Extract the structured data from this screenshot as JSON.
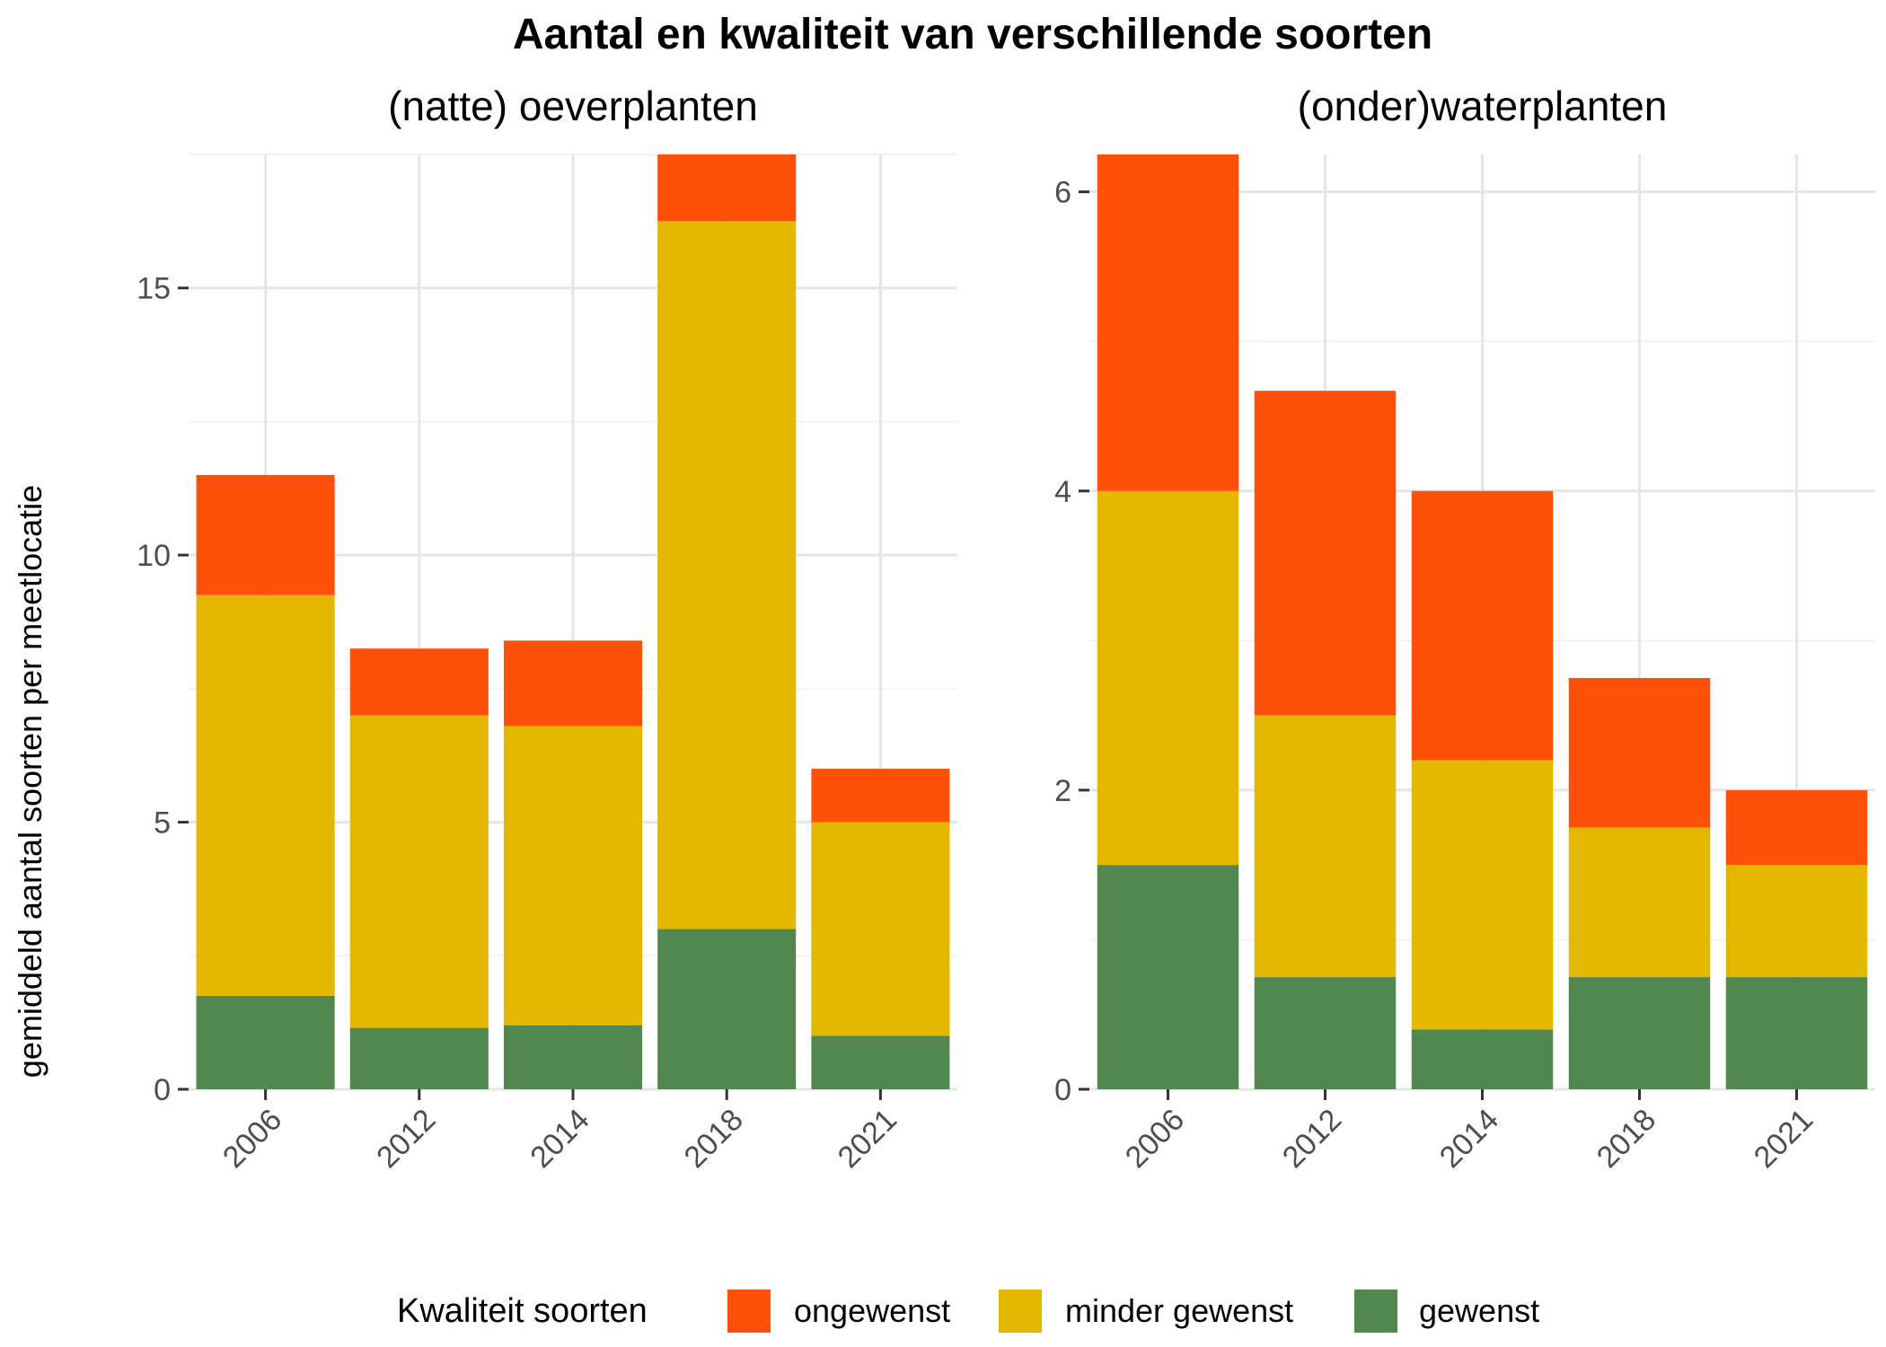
{
  "chart_data": {
    "type": "bar",
    "stacked": true,
    "title": "Aantal en kwaliteit van verschillende soorten",
    "ylabel": "gemiddeld aantal soorten per meetlocatie",
    "legend": {
      "title": "Kwaliteit soorten",
      "position": "bottom",
      "entries": [
        {
          "name": "ongewenst",
          "color": "#FF5009"
        },
        {
          "name": "minder gewenst",
          "color": "#E5B800"
        },
        {
          "name": "gewenst",
          "color": "#52874F"
        }
      ]
    },
    "grid": true,
    "panels": [
      {
        "subtitle": "(natte) oeverplanten",
        "categories": [
          "2006",
          "2012",
          "2014",
          "2018",
          "2021"
        ],
        "ylim": [
          0,
          17.5
        ],
        "yticks": [
          0,
          5,
          10,
          15
        ],
        "ytick_labels": [
          "0",
          "5",
          "10",
          "15"
        ],
        "series": [
          {
            "name": "gewenst",
            "values": [
              1.75,
              1.15,
              1.2,
              3.0,
              1.0
            ]
          },
          {
            "name": "minder gewenst",
            "values": [
              7.5,
              5.85,
              5.6,
              13.25,
              4.0
            ]
          },
          {
            "name": "ongewenst",
            "values": [
              2.25,
              1.25,
              1.6,
              1.25,
              1.0
            ]
          }
        ]
      },
      {
        "subtitle": "(onder)waterplanten",
        "categories": [
          "2006",
          "2012",
          "2014",
          "2018",
          "2021"
        ],
        "ylim": [
          0,
          6.25
        ],
        "yticks": [
          0,
          2,
          4,
          6
        ],
        "ytick_labels": [
          "0",
          "2",
          "4",
          "6"
        ],
        "series": [
          {
            "name": "gewenst",
            "values": [
              1.5,
              0.75,
              0.4,
              0.75,
              0.75
            ]
          },
          {
            "name": "minder gewenst",
            "values": [
              2.5,
              1.75,
              1.8,
              1.0,
              0.75
            ]
          },
          {
            "name": "ongewenst",
            "values": [
              2.25,
              2.17,
              1.8,
              1.0,
              0.5
            ]
          }
        ]
      }
    ]
  }
}
